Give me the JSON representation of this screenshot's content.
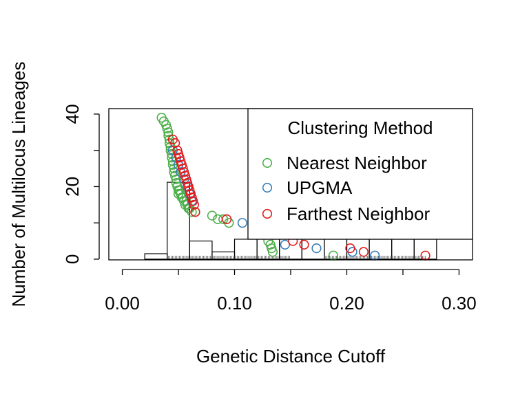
{
  "chart_data": {
    "type": "scatter",
    "title": "",
    "xlabel": "Genetic Distance Cutoff",
    "ylabel": "Number of Multilocus Lineages",
    "xlim": [
      -0.012,
      0.312
    ],
    "ylim": [
      -0.2,
      41.5
    ],
    "x_ticks": [
      0.0,
      0.1,
      0.2,
      0.3
    ],
    "x_tick_labels": [
      "0.00",
      "0.10",
      "0.20",
      "0.30"
    ],
    "y_ticks": [
      0,
      20,
      40
    ],
    "y_tick_labels": [
      "0",
      "20",
      "40"
    ],
    "grid": false,
    "legend": {
      "title": "Clustering Method",
      "position": "top-right",
      "entries": [
        "Nearest Neighbor",
        "UPGMA",
        "Farthest Neighbor"
      ]
    },
    "colors": {
      "Nearest Neighbor": "#4daf4a",
      "UPGMA": "#377eb8",
      "Farthest Neighbor": "#e41a1c",
      "axis": "#000000"
    },
    "histogram": {
      "bin_edges": [
        0.02,
        0.04,
        0.06,
        0.08,
        0.1,
        0.12,
        0.14,
        0.16,
        0.18,
        0.2,
        0.22,
        0.24,
        0.26,
        0.28
      ],
      "heights": [
        1.5,
        21.2,
        5.0,
        2.0,
        5.5,
        5.5,
        5.5,
        5.5,
        5.5,
        5.5,
        5.5,
        5.5,
        5.5
      ]
    },
    "rug": {
      "ranges": [
        [
          0.04,
          0.15
        ],
        [
          0.18,
          0.27
        ]
      ]
    },
    "series": [
      {
        "name": "Nearest Neighbor",
        "x": [
          0.035,
          0.037,
          0.039,
          0.04,
          0.041,
          0.041,
          0.042,
          0.042,
          0.043,
          0.043,
          0.044,
          0.044,
          0.045,
          0.045,
          0.046,
          0.046,
          0.047,
          0.048,
          0.048,
          0.049,
          0.05,
          0.05,
          0.051,
          0.052,
          0.053,
          0.054,
          0.055,
          0.056,
          0.057,
          0.058,
          0.059,
          0.06,
          0.062,
          0.065,
          0.08,
          0.085,
          0.09,
          0.095,
          0.13,
          0.132,
          0.133,
          0.134,
          0.188
        ],
        "y": [
          39,
          38,
          37,
          36,
          35,
          34,
          33,
          32,
          31,
          30,
          29,
          28,
          27,
          26,
          25,
          24,
          23,
          22,
          21,
          20,
          19,
          18,
          19,
          18,
          17,
          17,
          16,
          15,
          16,
          15,
          14,
          14,
          13,
          13,
          12,
          11,
          11,
          10,
          5,
          4,
          3,
          2,
          1
        ]
      },
      {
        "name": "UPGMA",
        "x": [
          0.045,
          0.048,
          0.05,
          0.052,
          0.055,
          0.058,
          0.06,
          0.062,
          0.107,
          0.145,
          0.173,
          0.205,
          0.225
        ],
        "y": [
          30,
          28,
          26,
          24,
          22,
          20,
          18,
          16,
          10,
          4,
          3,
          2,
          1
        ]
      },
      {
        "name": "Farthest Neighbor",
        "x": [
          0.045,
          0.047,
          0.049,
          0.05,
          0.051,
          0.052,
          0.053,
          0.054,
          0.055,
          0.056,
          0.057,
          0.058,
          0.059,
          0.06,
          0.061,
          0.062,
          0.063,
          0.064,
          0.065,
          0.093,
          0.152,
          0.162,
          0.203,
          0.215,
          0.27
        ],
        "y": [
          33,
          32,
          30,
          29,
          28,
          27,
          26,
          25,
          24,
          23,
          22,
          21,
          20,
          19,
          18,
          17,
          16,
          15,
          13,
          11,
          5,
          4,
          3,
          2,
          1
        ]
      }
    ]
  }
}
